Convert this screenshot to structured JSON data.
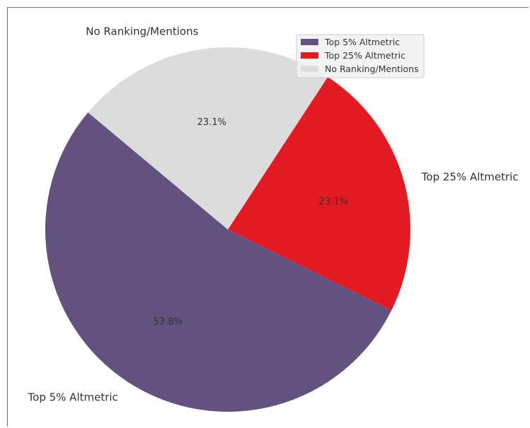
{
  "chart_data": {
    "type": "pie",
    "categories": [
      "Top 5% Altmetric",
      "Top 25% Altmetric",
      "No Ranking/Mentions"
    ],
    "values": [
      53.8,
      23.1,
      23.1
    ],
    "percent_labels": [
      "53.8%",
      "23.1%",
      "23.1%"
    ],
    "colors": [
      "#63517f",
      "#e31a22",
      "#dcdcdc"
    ],
    "start_angle_deg": 140,
    "direction": "counterclockwise",
    "title": "",
    "legend": {
      "placement": "top-right",
      "entries": [
        "Top 5% Altmetric",
        "Top 25% Altmetric",
        "No Ranking/Mentions"
      ]
    }
  }
}
